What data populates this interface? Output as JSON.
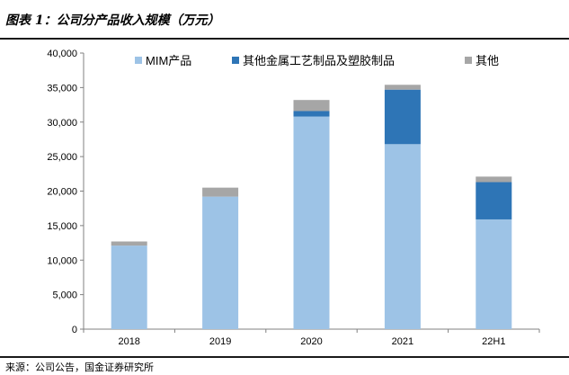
{
  "header": {
    "title": "图表 1：公司分产品收入规模（万元）"
  },
  "footer": {
    "source": "来源：公司公告，国金证券研究所"
  },
  "colors": {
    "mim": "#9dc3e6",
    "crafts": "#2e75b6",
    "other": "#a6a6a6"
  },
  "chart_data": {
    "type": "bar",
    "stacked": true,
    "categories": [
      "2018",
      "2019",
      "2020",
      "2021",
      "22H1"
    ],
    "series": [
      {
        "name": "MIM产品",
        "values": [
          12100,
          19200,
          30800,
          26800,
          15900
        ]
      },
      {
        "name": "其他金属工艺制品及塑胶制品",
        "values": [
          0,
          0,
          800,
          7900,
          5400
        ]
      },
      {
        "name": "其他",
        "values": [
          600,
          1300,
          1600,
          700,
          800
        ]
      }
    ],
    "ylim": [
      0,
      40000
    ],
    "yticks": [
      0,
      5000,
      10000,
      15000,
      20000,
      25000,
      30000,
      35000,
      40000
    ],
    "ytick_labels": [
      "0",
      "5,000",
      "10,000",
      "15,000",
      "20,000",
      "25,000",
      "30,000",
      "35,000",
      "40,000"
    ],
    "grid": false,
    "legend_position": "top"
  }
}
